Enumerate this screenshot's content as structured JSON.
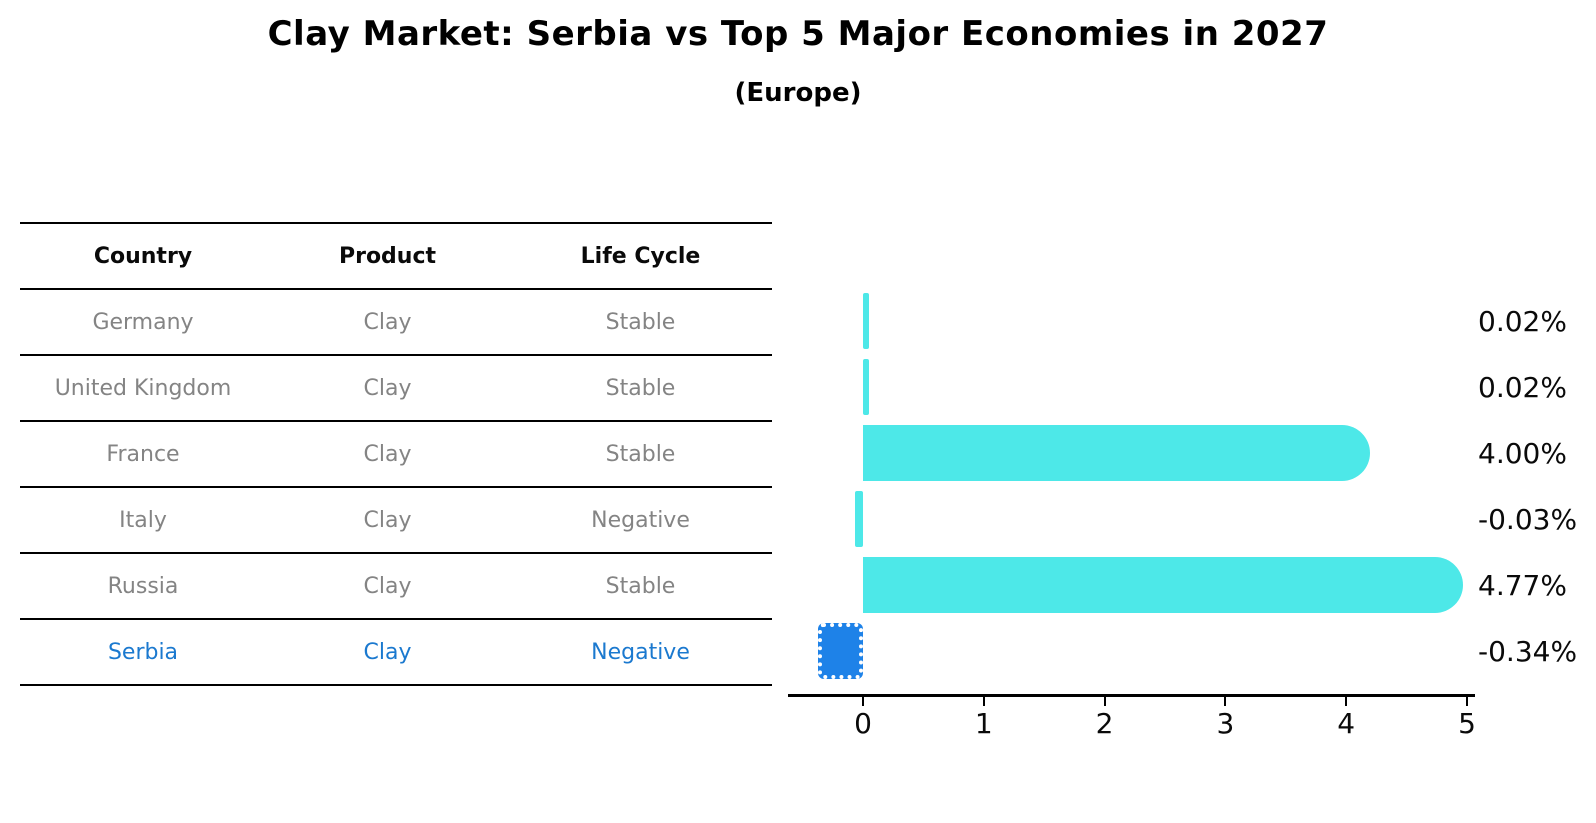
{
  "title": "Clay Market: Serbia vs Top 5 Major Economies in 2027",
  "subtitle": "(Europe)",
  "table": {
    "headers": [
      "Country",
      "Product",
      "Life Cycle"
    ],
    "rows": [
      {
        "country": "Germany",
        "product": "Clay",
        "life_cycle": "Stable",
        "highlight": false
      },
      {
        "country": "United Kingdom",
        "product": "Clay",
        "life_cycle": "Stable",
        "highlight": false
      },
      {
        "country": "France",
        "product": "Clay",
        "life_cycle": "Stable",
        "highlight": false
      },
      {
        "country": "Italy",
        "product": "Clay",
        "life_cycle": "Negative",
        "highlight": false
      },
      {
        "country": "Russia",
        "product": "Clay",
        "life_cycle": "Stable",
        "highlight": false
      },
      {
        "country": "Serbia",
        "product": "Clay",
        "life_cycle": "Negative",
        "highlight": true
      }
    ]
  },
  "chart_data": {
    "type": "bar",
    "orientation": "horizontal",
    "title": "Clay Market: Serbia vs Top 5 Major Economies in 2027",
    "subtitle": "(Europe)",
    "categories": [
      "Germany",
      "United Kingdom",
      "France",
      "Italy",
      "Russia",
      "Serbia"
    ],
    "values": [
      0.02,
      0.02,
      4.0,
      -0.03,
      4.77,
      -0.34
    ],
    "value_labels": [
      "0.02%",
      "0.02%",
      "4.00%",
      "-0.03%",
      "4.77%",
      "-0.34%"
    ],
    "x_ticks": [
      "0",
      "1",
      "2",
      "3",
      "4",
      "5"
    ],
    "xlim": [
      -0.5,
      5
    ],
    "grid": false,
    "legend": "none",
    "bar_color": "#4DE8E8",
    "highlight_color": "#1E82E8",
    "highlight_index": 5
  },
  "colors": {
    "bar_cyan": "#4DE8E8",
    "bar_blue": "#1E82E8",
    "highlight_text": "#1b79cf",
    "row_text": "#848484",
    "header_text": "#0a0a0a",
    "line": "#000000"
  }
}
